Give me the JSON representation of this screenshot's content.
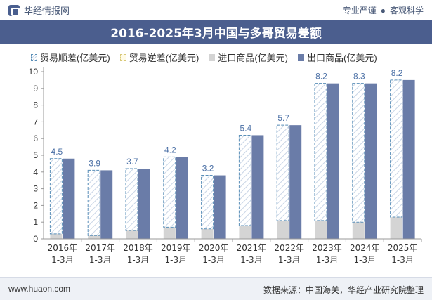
{
  "header": {
    "brand": "华经情报网",
    "tag1": "专业严谨",
    "separator": "●",
    "tag2": "客观科学"
  },
  "footer": {
    "website": "www.huaon.com",
    "source": "数据来源：中国海关，华经产业研究院整理"
  },
  "colors": {
    "title_bar": "#4b5e8e",
    "export": "#6a7ca8",
    "import": "#d4d4d4",
    "surplus_stroke": "#5a8fb8",
    "label": "#4a6fa5"
  },
  "chart_data": {
    "type": "bar",
    "title": "2016-2025年3月中国与多哥贸易差额",
    "categories": [
      [
        "2016年",
        "1-3月"
      ],
      [
        "2017年",
        "1-3月"
      ],
      [
        "2018年",
        "1-3月"
      ],
      [
        "2019年",
        "1-3月"
      ],
      [
        "2020年",
        "1-3月"
      ],
      [
        "2021年",
        "1-3月"
      ],
      [
        "2022年",
        "1-3月"
      ],
      [
        "2023年",
        "1-3月"
      ],
      [
        "2024年",
        "1-3月"
      ],
      [
        "2025年",
        "1-3月"
      ]
    ],
    "series": [
      {
        "name": "贸易顺差(亿美元)",
        "values": [
          4.5,
          3.9,
          3.7,
          4.2,
          3.2,
          5.4,
          5.7,
          8.2,
          8.3,
          8.2
        ]
      },
      {
        "name": "贸易逆差(亿美元)",
        "values": [
          0,
          0,
          0,
          0,
          0,
          0,
          0,
          0,
          0,
          0
        ]
      },
      {
        "name": "进口商品(亿美元)",
        "values": [
          0.3,
          0.2,
          0.5,
          0.7,
          0.6,
          0.8,
          1.1,
          1.1,
          1.0,
          1.3
        ]
      },
      {
        "name": "出口商品(亿美元)",
        "values": [
          4.8,
          4.1,
          4.2,
          4.9,
          3.8,
          6.2,
          6.8,
          9.3,
          9.3,
          9.5
        ]
      }
    ],
    "ylim": [
      0,
      10
    ],
    "yticks": [
      0,
      1,
      2,
      3,
      4,
      5,
      6,
      7,
      8,
      9,
      10
    ],
    "legend_position": "top",
    "grid": false
  }
}
